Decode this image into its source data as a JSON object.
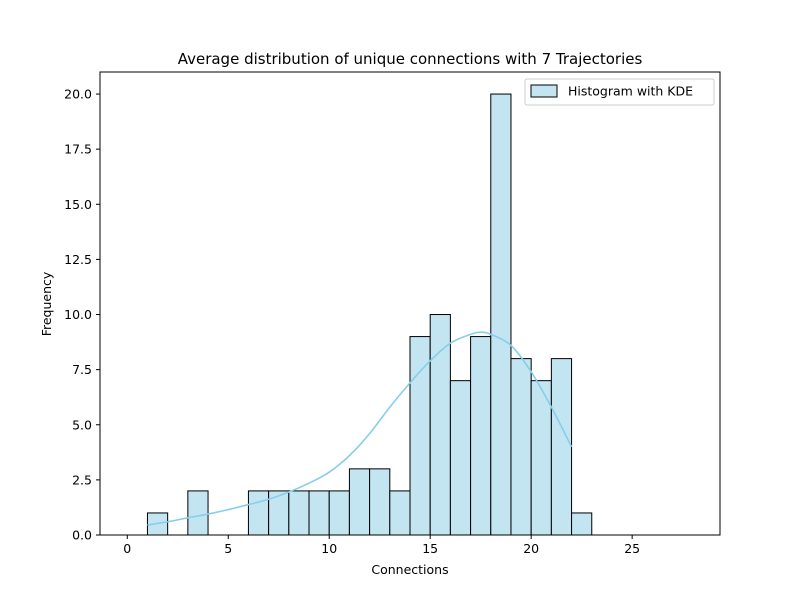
{
  "chart_data": {
    "type": "bar",
    "title": "Average distribution of unique connections with 7 Trajectories",
    "xlabel": "Connections",
    "ylabel": "Frequency",
    "xlim": [
      -1.35,
      29.35
    ],
    "ylim": [
      0,
      21
    ],
    "x_ticks": [
      0,
      5,
      10,
      15,
      20,
      25
    ],
    "x_tick_labels": [
      "0",
      "5",
      "10",
      "15",
      "20",
      "25"
    ],
    "y_ticks": [
      0,
      2.5,
      5,
      7.5,
      10,
      12.5,
      15,
      17.5,
      20
    ],
    "y_tick_labels": [
      "0.0",
      "2.5",
      "5.0",
      "7.5",
      "10.0",
      "12.5",
      "15.0",
      "17.5",
      "20.0"
    ],
    "bin_width": 1,
    "bins": [
      {
        "start": 1,
        "count": 1
      },
      {
        "start": 3,
        "count": 2
      },
      {
        "start": 6,
        "count": 2
      },
      {
        "start": 7,
        "count": 2
      },
      {
        "start": 8,
        "count": 2
      },
      {
        "start": 9,
        "count": 2
      },
      {
        "start": 10,
        "count": 2
      },
      {
        "start": 11,
        "count": 3
      },
      {
        "start": 12,
        "count": 3
      },
      {
        "start": 13,
        "count": 2
      },
      {
        "start": 14,
        "count": 9
      },
      {
        "start": 15,
        "count": 10
      },
      {
        "start": 16,
        "count": 7
      },
      {
        "start": 17,
        "count": 9
      },
      {
        "start": 18,
        "count": 20
      },
      {
        "start": 19,
        "count": 8
      },
      {
        "start": 20,
        "count": 7
      },
      {
        "start": 21,
        "count": 8
      },
      {
        "start": 22,
        "count": 1
      }
    ],
    "baseline_range": [
      0,
      28
    ],
    "kde_curve": {
      "x": [
        1,
        2,
        3,
        4,
        5,
        6,
        7,
        8,
        9,
        10,
        11,
        12,
        13,
        14,
        15,
        16,
        17,
        17.5,
        18,
        19,
        20,
        21,
        22
      ],
      "y": [
        0.45,
        0.6,
        0.78,
        0.95,
        1.15,
        1.38,
        1.62,
        1.95,
        2.35,
        2.85,
        3.6,
        4.6,
        5.8,
        6.9,
        7.9,
        8.7,
        9.1,
        9.2,
        9.1,
        8.6,
        7.4,
        5.8,
        4.0
      ]
    },
    "legend": {
      "label": "Histogram with KDE",
      "position": "top-right"
    },
    "grid": false,
    "colors": {
      "bar_fill": "#c3e4f1",
      "bar_edge": "#000000",
      "kde_line": "#87ceeb"
    }
  }
}
